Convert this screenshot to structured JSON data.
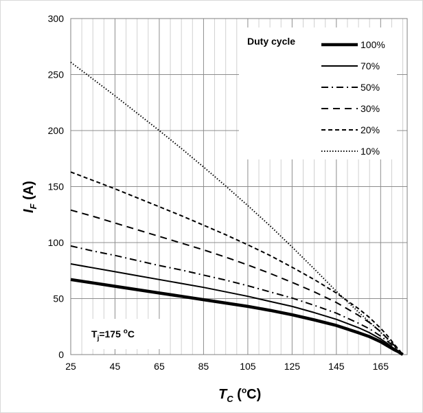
{
  "chart_data": {
    "type": "line",
    "xlabel": {
      "main": "T",
      "sub": "C",
      "rest": " (",
      "sup": "o",
      "unit": "C)"
    },
    "ylabel": {
      "main": "I",
      "sub": "F",
      "unit": " (A)"
    },
    "xlim": [
      25,
      177
    ],
    "ylim": [
      0,
      300
    ],
    "xticks": [
      25,
      45,
      65,
      85,
      105,
      125,
      145,
      165
    ],
    "yticks": [
      0,
      50,
      100,
      150,
      200,
      250,
      300
    ],
    "x_minor_step": 5,
    "grid": true,
    "legend": {
      "title": "Duty cycle",
      "placement": "top-right"
    },
    "annotation": {
      "prefix": "T",
      "sub": "j",
      "mid": "=175 ",
      "sup": "o",
      "suffix": "C"
    },
    "x": [
      25,
      35,
      45,
      55,
      65,
      75,
      85,
      95,
      105,
      115,
      125,
      135,
      145,
      155,
      160,
      165,
      168,
      171,
      173,
      175
    ],
    "series": [
      {
        "name": "100%",
        "style": "solid-thick",
        "values": [
          67,
          64,
          61,
          58,
          55,
          52,
          49,
          46,
          43,
          39.5,
          35.5,
          31,
          26,
          19.5,
          16,
          11.5,
          8,
          4.5,
          2.5,
          0
        ]
      },
      {
        "name": "70%",
        "style": "solid",
        "values": [
          81,
          77.5,
          74,
          70.5,
          67,
          63.5,
          60,
          56,
          52,
          47.5,
          43,
          37.5,
          31.5,
          24,
          19.5,
          14,
          10,
          5.5,
          3,
          0
        ]
      },
      {
        "name": "50%",
        "style": "dash-dot",
        "values": [
          97,
          92.5,
          88.5,
          84,
          79.5,
          75.5,
          71,
          66.5,
          61.5,
          56,
          50.5,
          44,
          37,
          28,
          23,
          16.5,
          12,
          7,
          3.5,
          0
        ]
      },
      {
        "name": "30%",
        "style": "long-dash",
        "values": [
          129,
          123.5,
          117.5,
          111.5,
          105.5,
          99.5,
          93.5,
          87,
          80,
          72.5,
          64.5,
          56,
          46.5,
          35,
          28.5,
          20.5,
          14.5,
          8.5,
          4.5,
          0
        ]
      },
      {
        "name": "20%",
        "style": "dash",
        "values": [
          163,
          155.5,
          148,
          140,
          132,
          124,
          115.5,
          107,
          98,
          88.5,
          78,
          67,
          55,
          41,
          33,
          23.5,
          17,
          9.5,
          5,
          0
        ]
      },
      {
        "name": "10%",
        "style": "dotted",
        "values": [
          261,
          246,
          231,
          215.5,
          200,
          184,
          167.5,
          150.5,
          133,
          115,
          96,
          76.5,
          56.5,
          38,
          29,
          20,
          14,
          8,
          4,
          0
        ]
      }
    ]
  }
}
